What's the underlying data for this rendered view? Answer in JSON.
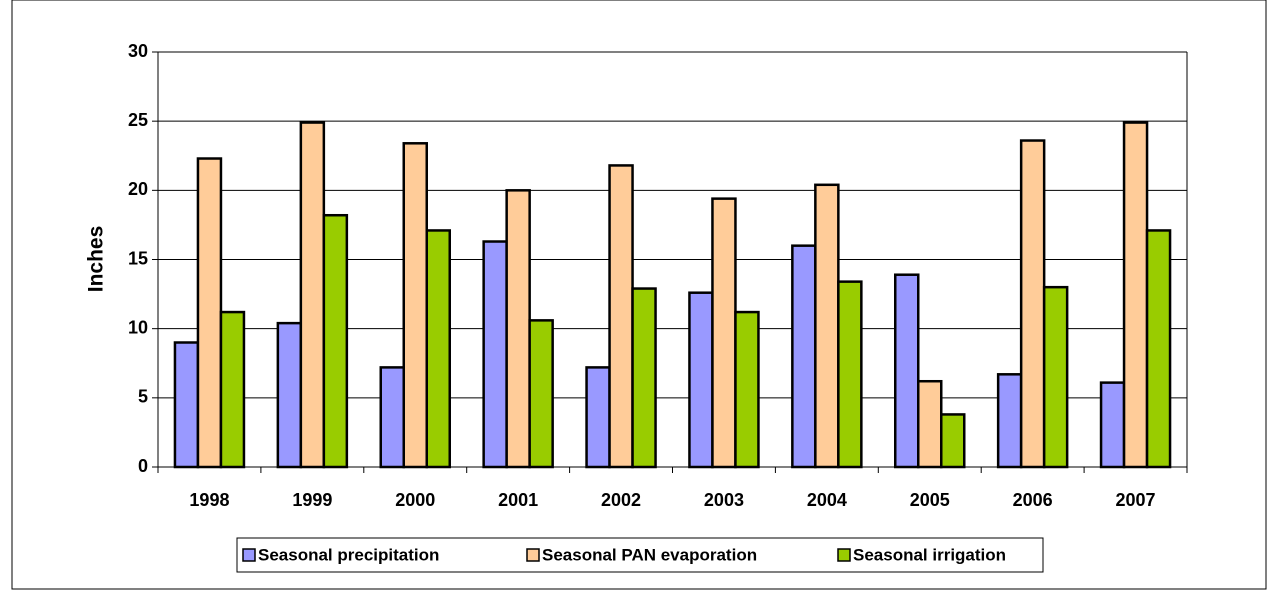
{
  "chart_data": {
    "type": "bar",
    "y_label": "Inches",
    "categories": [
      "1998",
      "1999",
      "2000",
      "2001",
      "2002",
      "2003",
      "2004",
      "2005",
      "2006",
      "2007"
    ],
    "series": [
      {
        "name": "Seasonal precipitation",
        "color": "#9999ff",
        "values": [
          9.0,
          10.4,
          7.2,
          16.3,
          7.2,
          12.6,
          16.0,
          13.9,
          6.7,
          6.1
        ]
      },
      {
        "name": "Seasonal PAN evaporation",
        "color": "#ffcc99",
        "values": [
          22.3,
          24.9,
          23.4,
          20.0,
          21.8,
          19.4,
          20.4,
          6.2,
          23.6,
          24.9
        ]
      },
      {
        "name": "Seasonal irrigation",
        "color": "#99cc00",
        "values": [
          11.2,
          18.2,
          17.1,
          10.6,
          12.9,
          11.2,
          13.4,
          3.8,
          13.0,
          17.1
        ]
      }
    ],
    "ylim": [
      0,
      30
    ],
    "yticks": [
      0,
      5,
      10,
      15,
      20,
      25,
      30
    ],
    "grid": true
  }
}
